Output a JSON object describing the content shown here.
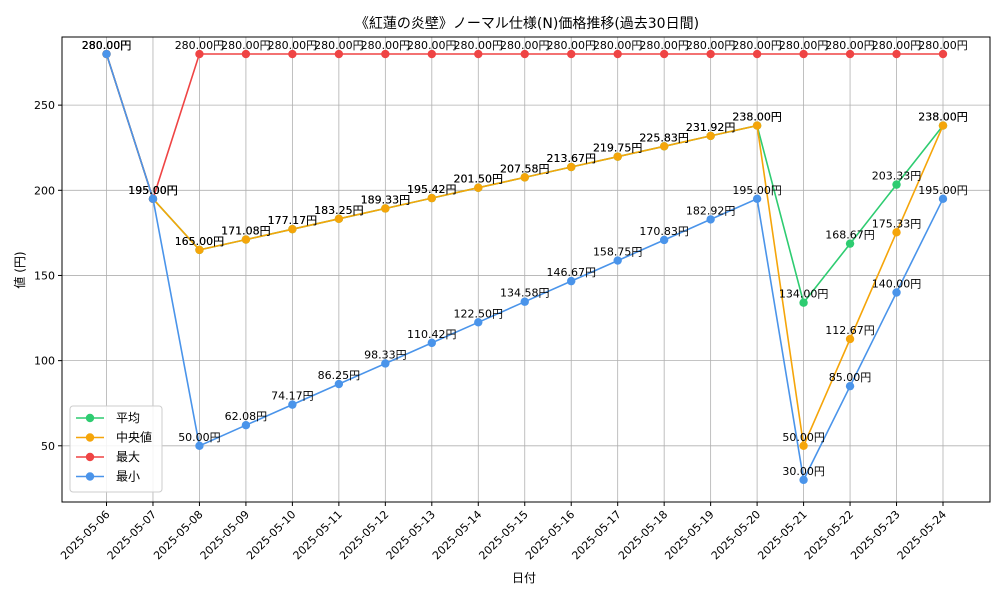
{
  "chart_data": {
    "type": "line",
    "title": "《紅蓮の炎壁》ノーマル仕様(N)価格推移(過去30日間)",
    "xlabel": "日付",
    "ylabel": "値 (円)",
    "ylim": [
      17,
      290
    ],
    "yticks": [
      50,
      100,
      150,
      200,
      250
    ],
    "grid": true,
    "legend_position": "lower-left",
    "label_suffix": "円",
    "categories": [
      "2025-05-06",
      "2025-05-07",
      "2025-05-08",
      "2025-05-09",
      "2025-05-10",
      "2025-05-11",
      "2025-05-12",
      "2025-05-13",
      "2025-05-14",
      "2025-05-15",
      "2025-05-16",
      "2025-05-17",
      "2025-05-18",
      "2025-05-19",
      "2025-05-20",
      "2025-05-21",
      "2025-05-22",
      "2025-05-23",
      "2025-05-24"
    ],
    "series": [
      {
        "name": "平均",
        "color": "#2ecc71",
        "values": [
          280.0,
          195.0,
          165.0,
          171.08,
          177.17,
          183.25,
          189.33,
          195.42,
          201.5,
          207.58,
          213.67,
          219.75,
          225.83,
          231.92,
          238.0,
          134.0,
          168.67,
          203.33,
          238.0
        ]
      },
      {
        "name": "中央値",
        "color": "#f5a50a",
        "values": [
          280.0,
          195.0,
          165.0,
          171.08,
          177.17,
          183.25,
          189.33,
          195.42,
          201.5,
          207.58,
          213.67,
          219.75,
          225.83,
          231.92,
          238.0,
          50.0,
          112.67,
          175.33,
          238.0
        ]
      },
      {
        "name": "最大",
        "color": "#ef4444",
        "values": [
          280.0,
          195.0,
          280.0,
          280.0,
          280.0,
          280.0,
          280.0,
          280.0,
          280.0,
          280.0,
          280.0,
          280.0,
          280.0,
          280.0,
          280.0,
          280.0,
          280.0,
          280.0,
          280.0
        ]
      },
      {
        "name": "最小",
        "color": "#4a94ea",
        "values": [
          280.0,
          195.0,
          50.0,
          62.08,
          74.17,
          86.25,
          98.33,
          110.42,
          122.5,
          134.58,
          146.67,
          158.75,
          170.83,
          182.92,
          195.0,
          30.0,
          85.0,
          140.0,
          195.0
        ]
      }
    ]
  }
}
